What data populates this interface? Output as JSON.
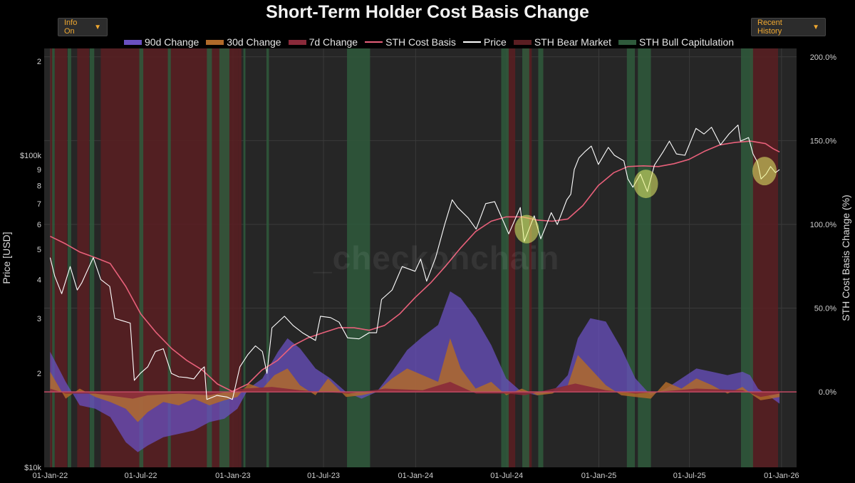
{
  "title": "Short-Term Holder Cost Basis Change",
  "controls": {
    "info_label": "Info On",
    "range_label": "Recent History"
  },
  "watermark": "_checkonchain",
  "colors": {
    "c90": "#6a50c0",
    "c30": "#b06a2a",
    "c7": "#8a2a3a",
    "cost_basis": "#e8607a",
    "price": "#ffffff",
    "bear": "#5a1e22",
    "bull": "#2f5a3c",
    "highlight": "#e8f06a",
    "plot_bg": "#262626",
    "grid": "#3a3a3a"
  },
  "legend": [
    {
      "label": "90d Change",
      "color": "#6a50c0",
      "kind": "area"
    },
    {
      "label": "30d Change",
      "color": "#b06a2a",
      "kind": "area"
    },
    {
      "label": "7d Change",
      "color": "#8a2a3a",
      "kind": "area"
    },
    {
      "label": "STH Cost Basis",
      "color": "#e8607a",
      "kind": "line"
    },
    {
      "label": "Price",
      "color": "#ffffff",
      "kind": "line"
    },
    {
      "label": "STH Bear Market",
      "color": "#5a1e22",
      "kind": "area"
    },
    {
      "label": "STH Bull Capitulation",
      "color": "#2f5a3c",
      "kind": "area"
    }
  ],
  "chart_data": {
    "type": "line",
    "title": "Short-Term Holder Cost Basis Change",
    "left_axis": {
      "label": "Price [USD]",
      "scale": "log",
      "range": [
        10000,
        220000
      ],
      "ticks": [
        {
          "v": 10000,
          "t": "$10k"
        },
        {
          "v": 20000,
          "t": "2"
        },
        {
          "v": 30000,
          "t": "3"
        },
        {
          "v": 40000,
          "t": "4"
        },
        {
          "v": 50000,
          "t": "5"
        },
        {
          "v": 60000,
          "t": "6"
        },
        {
          "v": 70000,
          "t": "7"
        },
        {
          "v": 80000,
          "t": "8"
        },
        {
          "v": 90000,
          "t": "9"
        },
        {
          "v": 100000,
          "t": "$100k"
        },
        {
          "v": 200000,
          "t": "2"
        }
      ]
    },
    "right_axis": {
      "label": "STH Cost Basis Change (%)",
      "range": [
        -45,
        205
      ],
      "ticks": [
        {
          "v": 0,
          "t": "0.0%"
        },
        {
          "v": 50,
          "t": "50.0%"
        },
        {
          "v": 100,
          "t": "100.0%"
        },
        {
          "v": 150,
          "t": "150.0%"
        },
        {
          "v": 200,
          "t": "200.0%"
        }
      ]
    },
    "x_axis": {
      "range": [
        "2021-12-20",
        "2026-01-31"
      ],
      "ticks": [
        {
          "d": "2022-01-01",
          "t": "01-Jan-22"
        },
        {
          "d": "2022-07-01",
          "t": "01-Jul-22"
        },
        {
          "d": "2023-01-01",
          "t": "01-Jan-23"
        },
        {
          "d": "2023-07-01",
          "t": "01-Jul-23"
        },
        {
          "d": "2024-01-01",
          "t": "01-Jan-24"
        },
        {
          "d": "2024-07-01",
          "t": "01-Jul-24"
        },
        {
          "d": "2025-01-01",
          "t": "01-Jan-25"
        },
        {
          "d": "2025-07-01",
          "t": "01-Jul-25"
        },
        {
          "d": "2026-01-01",
          "t": "01-Jan-26"
        }
      ]
    },
    "grid": true,
    "price": [
      [
        "2022-01-01",
        47000
      ],
      [
        "2022-01-10",
        41000
      ],
      [
        "2022-01-24",
        36000
      ],
      [
        "2022-02-10",
        44000
      ],
      [
        "2022-02-24",
        37000
      ],
      [
        "2022-03-05",
        39000
      ],
      [
        "2022-03-28",
        47000
      ],
      [
        "2022-04-12",
        40000
      ],
      [
        "2022-04-30",
        38000
      ],
      [
        "2022-05-10",
        30000
      ],
      [
        "2022-05-25",
        29500
      ],
      [
        "2022-06-10",
        29000
      ],
      [
        "2022-06-18",
        19000
      ],
      [
        "2022-06-30",
        20000
      ],
      [
        "2022-07-15",
        21000
      ],
      [
        "2022-07-30",
        23500
      ],
      [
        "2022-08-15",
        24000
      ],
      [
        "2022-08-31",
        20000
      ],
      [
        "2022-09-15",
        19500
      ],
      [
        "2022-09-30",
        19400
      ],
      [
        "2022-10-15",
        19200
      ],
      [
        "2022-10-30",
        20600
      ],
      [
        "2022-11-05",
        21000
      ],
      [
        "2022-11-10",
        16500
      ],
      [
        "2022-11-30",
        17000
      ],
      [
        "2022-12-20",
        16800
      ],
      [
        "2022-12-31",
        16500
      ],
      [
        "2023-01-15",
        21000
      ],
      [
        "2023-01-31",
        23000
      ],
      [
        "2023-02-15",
        24500
      ],
      [
        "2023-03-01",
        23500
      ],
      [
        "2023-03-10",
        20000
      ],
      [
        "2023-03-20",
        28000
      ],
      [
        "2023-04-14",
        30500
      ],
      [
        "2023-05-01",
        28500
      ],
      [
        "2023-05-20",
        27000
      ],
      [
        "2023-06-15",
        25500
      ],
      [
        "2023-06-25",
        30500
      ],
      [
        "2023-07-15",
        30200
      ],
      [
        "2023-08-01",
        29200
      ],
      [
        "2023-08-18",
        26000
      ],
      [
        "2023-09-10",
        25800
      ],
      [
        "2023-09-30",
        27000
      ],
      [
        "2023-10-15",
        27000
      ],
      [
        "2023-10-25",
        34500
      ],
      [
        "2023-11-15",
        37000
      ],
      [
        "2023-12-05",
        44000
      ],
      [
        "2023-12-31",
        42500
      ],
      [
        "2024-01-11",
        46500
      ],
      [
        "2024-01-23",
        39500
      ],
      [
        "2024-02-10",
        47000
      ],
      [
        "2024-02-28",
        60000
      ],
      [
        "2024-03-14",
        72000
      ],
      [
        "2024-03-25",
        68000
      ],
      [
        "2024-04-15",
        63000
      ],
      [
        "2024-05-01",
        58000
      ],
      [
        "2024-05-20",
        70000
      ],
      [
        "2024-06-07",
        71000
      ],
      [
        "2024-06-25",
        61000
      ],
      [
        "2024-07-05",
        56000
      ],
      [
        "2024-07-28",
        68000
      ],
      [
        "2024-08-05",
        53000
      ],
      [
        "2024-08-25",
        64000
      ],
      [
        "2024-09-07",
        54000
      ],
      [
        "2024-09-28",
        65500
      ],
      [
        "2024-10-10",
        60000
      ],
      [
        "2024-10-29",
        72000
      ],
      [
        "2024-11-06",
        75000
      ],
      [
        "2024-11-13",
        90000
      ],
      [
        "2024-11-22",
        98000
      ],
      [
        "2024-12-05",
        103000
      ],
      [
        "2024-12-17",
        107000
      ],
      [
        "2024-12-31",
        93500
      ],
      [
        "2025-01-20",
        106000
      ],
      [
        "2025-02-01",
        100000
      ],
      [
        "2025-02-20",
        96000
      ],
      [
        "2025-02-28",
        84000
      ],
      [
        "2025-03-10",
        79000
      ],
      [
        "2025-03-25",
        87000
      ],
      [
        "2025-04-08",
        76500
      ],
      [
        "2025-04-22",
        93000
      ],
      [
        "2025-05-10",
        103000
      ],
      [
        "2025-05-22",
        111000
      ],
      [
        "2025-06-05",
        101000
      ],
      [
        "2025-06-22",
        100000
      ],
      [
        "2025-07-14",
        122000
      ],
      [
        "2025-07-30",
        117000
      ],
      [
        "2025-08-14",
        123000
      ],
      [
        "2025-09-01",
        108000
      ],
      [
        "2025-09-18",
        117000
      ],
      [
        "2025-10-06",
        125000
      ],
      [
        "2025-10-11",
        111000
      ],
      [
        "2025-10-27",
        114000
      ],
      [
        "2025-11-05",
        101000
      ],
      [
        "2025-11-14",
        95000
      ],
      [
        "2025-11-21",
        84000
      ],
      [
        "2025-12-01",
        87000
      ],
      [
        "2025-12-10",
        92000
      ],
      [
        "2025-12-20",
        88000
      ],
      [
        "2025-12-28",
        90000
      ]
    ],
    "cost_basis": [
      [
        "2022-01-01",
        55000
      ],
      [
        "2022-02-01",
        52000
      ],
      [
        "2022-03-01",
        49000
      ],
      [
        "2022-04-01",
        47000
      ],
      [
        "2022-05-01",
        45000
      ],
      [
        "2022-06-01",
        38000
      ],
      [
        "2022-07-01",
        31000
      ],
      [
        "2022-08-01",
        27000
      ],
      [
        "2022-09-01",
        24000
      ],
      [
        "2022-10-01",
        22000
      ],
      [
        "2022-11-01",
        20500
      ],
      [
        "2022-12-01",
        18500
      ],
      [
        "2022-12-31",
        17500
      ],
      [
        "2023-01-31",
        18500
      ],
      [
        "2023-02-28",
        20500
      ],
      [
        "2023-03-31",
        22000
      ],
      [
        "2023-04-30",
        24500
      ],
      [
        "2023-05-31",
        26000
      ],
      [
        "2023-06-30",
        27000
      ],
      [
        "2023-07-31",
        28000
      ],
      [
        "2023-08-31",
        28000
      ],
      [
        "2023-09-30",
        27500
      ],
      [
        "2023-10-31",
        28500
      ],
      [
        "2023-11-30",
        31000
      ],
      [
        "2023-12-31",
        35000
      ],
      [
        "2024-01-31",
        39000
      ],
      [
        "2024-02-29",
        44000
      ],
      [
        "2024-03-31",
        50500
      ],
      [
        "2024-04-30",
        57000
      ],
      [
        "2024-05-31",
        61500
      ],
      [
        "2024-06-30",
        63500
      ],
      [
        "2024-07-31",
        63500
      ],
      [
        "2024-08-31",
        62000
      ],
      [
        "2024-09-30",
        61500
      ],
      [
        "2024-10-31",
        62500
      ],
      [
        "2024-11-30",
        69000
      ],
      [
        "2024-12-31",
        80000
      ],
      [
        "2025-01-31",
        88000
      ],
      [
        "2025-02-28",
        92000
      ],
      [
        "2025-03-31",
        92500
      ],
      [
        "2025-04-30",
        92000
      ],
      [
        "2025-05-31",
        94000
      ],
      [
        "2025-06-30",
        97000
      ],
      [
        "2025-07-31",
        103000
      ],
      [
        "2025-08-31",
        108000
      ],
      [
        "2025-09-30",
        110000
      ],
      [
        "2025-10-31",
        111000
      ],
      [
        "2025-11-30",
        109000
      ],
      [
        "2025-12-15",
        105000
      ],
      [
        "2025-12-28",
        102500
      ]
    ],
    "change_90d": [
      [
        "2022-01-01",
        24
      ],
      [
        "2022-02-01",
        6
      ],
      [
        "2022-03-01",
        -8
      ],
      [
        "2022-04-01",
        -10
      ],
      [
        "2022-05-01",
        -15
      ],
      [
        "2022-06-01",
        -30
      ],
      [
        "2022-06-25",
        -36
      ],
      [
        "2022-07-15",
        -32
      ],
      [
        "2022-08-15",
        -27
      ],
      [
        "2022-09-15",
        -25
      ],
      [
        "2022-10-15",
        -23
      ],
      [
        "2022-11-15",
        -18
      ],
      [
        "2022-12-15",
        -16
      ],
      [
        "2023-01-10",
        -10
      ],
      [
        "2023-02-01",
        2
      ],
      [
        "2023-03-01",
        8
      ],
      [
        "2023-04-01",
        24
      ],
      [
        "2023-04-20",
        32
      ],
      [
        "2023-05-15",
        26
      ],
      [
        "2023-06-15",
        14
      ],
      [
        "2023-07-15",
        8
      ],
      [
        "2023-08-15",
        0
      ],
      [
        "2023-09-15",
        -4
      ],
      [
        "2023-10-15",
        0
      ],
      [
        "2023-11-15",
        12
      ],
      [
        "2023-12-15",
        25
      ],
      [
        "2024-01-15",
        33
      ],
      [
        "2024-02-15",
        40
      ],
      [
        "2024-03-10",
        60
      ],
      [
        "2024-03-31",
        56
      ],
      [
        "2024-04-30",
        44
      ],
      [
        "2024-05-31",
        28
      ],
      [
        "2024-06-30",
        8
      ],
      [
        "2024-07-31",
        0
      ],
      [
        "2024-08-31",
        -2
      ],
      [
        "2024-09-30",
        0
      ],
      [
        "2024-10-31",
        10
      ],
      [
        "2024-11-20",
        32
      ],
      [
        "2024-12-15",
        44
      ],
      [
        "2025-01-15",
        42
      ],
      [
        "2025-02-15",
        26
      ],
      [
        "2025-03-15",
        8
      ],
      [
        "2025-04-15",
        -2
      ],
      [
        "2025-05-15",
        2
      ],
      [
        "2025-06-15",
        8
      ],
      [
        "2025-07-15",
        14
      ],
      [
        "2025-08-15",
        12
      ],
      [
        "2025-09-15",
        10
      ],
      [
        "2025-10-15",
        12
      ],
      [
        "2025-10-30",
        10
      ],
      [
        "2025-11-15",
        2
      ],
      [
        "2025-12-05",
        -2
      ],
      [
        "2025-12-28",
        -7
      ]
    ],
    "change_30d": [
      [
        "2022-01-01",
        12
      ],
      [
        "2022-02-01",
        -4
      ],
      [
        "2022-03-01",
        2
      ],
      [
        "2022-04-01",
        -3
      ],
      [
        "2022-05-01",
        -6
      ],
      [
        "2022-06-01",
        -10
      ],
      [
        "2022-06-25",
        -18
      ],
      [
        "2022-07-15",
        -12
      ],
      [
        "2022-08-15",
        -6
      ],
      [
        "2022-09-15",
        -8
      ],
      [
        "2022-10-15",
        -4
      ],
      [
        "2022-11-15",
        -8
      ],
      [
        "2022-12-15",
        -5
      ],
      [
        "2023-01-10",
        -3
      ],
      [
        "2023-02-01",
        5
      ],
      [
        "2023-03-01",
        2
      ],
      [
        "2023-03-25",
        10
      ],
      [
        "2023-04-20",
        14
      ],
      [
        "2023-05-15",
        4
      ],
      [
        "2023-06-15",
        -2
      ],
      [
        "2023-07-10",
        8
      ],
      [
        "2023-08-15",
        -3
      ],
      [
        "2023-09-15",
        -2
      ],
      [
        "2023-10-15",
        0
      ],
      [
        "2023-11-15",
        8
      ],
      [
        "2023-12-15",
        14
      ],
      [
        "2024-01-15",
        10
      ],
      [
        "2024-02-15",
        6
      ],
      [
        "2024-03-10",
        32
      ],
      [
        "2024-03-31",
        14
      ],
      [
        "2024-04-30",
        2
      ],
      [
        "2024-05-31",
        6
      ],
      [
        "2024-06-30",
        -2
      ],
      [
        "2024-07-31",
        2
      ],
      [
        "2024-08-31",
        -2
      ],
      [
        "2024-09-30",
        -1
      ],
      [
        "2024-10-31",
        4
      ],
      [
        "2024-11-20",
        22
      ],
      [
        "2024-12-15",
        14
      ],
      [
        "2025-01-15",
        4
      ],
      [
        "2025-02-15",
        -2
      ],
      [
        "2025-03-15",
        -3
      ],
      [
        "2025-04-15",
        -4
      ],
      [
        "2025-05-15",
        6
      ],
      [
        "2025-06-15",
        2
      ],
      [
        "2025-07-15",
        8
      ],
      [
        "2025-08-15",
        4
      ],
      [
        "2025-09-15",
        -1
      ],
      [
        "2025-10-15",
        3
      ],
      [
        "2025-11-05",
        -2
      ],
      [
        "2025-11-20",
        -5
      ],
      [
        "2025-12-10",
        -4
      ],
      [
        "2025-12-28",
        -3
      ]
    ],
    "change_7d": [
      [
        "2022-01-01",
        2
      ],
      [
        "2022-02-01",
        -1
      ],
      [
        "2022-04-01",
        -1
      ],
      [
        "2022-06-15",
        -4
      ],
      [
        "2022-07-15",
        -2
      ],
      [
        "2022-09-15",
        -1
      ],
      [
        "2022-11-15",
        -2
      ],
      [
        "2023-01-20",
        2
      ],
      [
        "2023-03-20",
        3
      ],
      [
        "2023-05-15",
        1
      ],
      [
        "2023-08-20",
        -1
      ],
      [
        "2023-11-01",
        2
      ],
      [
        "2024-01-15",
        1
      ],
      [
        "2024-03-10",
        6
      ],
      [
        "2024-05-01",
        -1
      ],
      [
        "2024-07-05",
        -1
      ],
      [
        "2024-08-05",
        -2
      ],
      [
        "2024-11-15",
        5
      ],
      [
        "2025-01-15",
        1
      ],
      [
        "2025-03-15",
        -1
      ],
      [
        "2025-07-15",
        2
      ],
      [
        "2025-10-15",
        1
      ],
      [
        "2025-11-20",
        -3
      ],
      [
        "2025-12-28",
        -1
      ]
    ],
    "bear_market": [
      [
        "2022-01-01",
        "2022-01-06"
      ],
      [
        "2022-01-10",
        "2022-02-04"
      ],
      [
        "2022-02-24",
        "2022-03-20"
      ],
      [
        "2022-04-12",
        "2023-01-12"
      ],
      [
        "2023-01-12",
        "2023-01-18"
      ],
      [
        "2024-07-02",
        "2024-07-18"
      ],
      [
        "2024-08-03",
        "2024-08-20"
      ],
      [
        "2025-10-30",
        "2025-12-25"
      ]
    ],
    "bull_capitulation": [
      [
        "2022-01-05",
        "2022-01-10"
      ],
      [
        "2022-02-05",
        "2022-02-12"
      ],
      [
        "2022-03-21",
        "2022-03-30"
      ],
      [
        "2022-06-28",
        "2022-07-06"
      ],
      [
        "2022-08-24",
        "2022-08-30"
      ],
      [
        "2022-11-10",
        "2022-11-20"
      ],
      [
        "2022-12-05",
        "2022-12-25"
      ],
      [
        "2023-01-22",
        "2023-01-26"
      ],
      [
        "2023-03-09",
        "2023-03-14"
      ],
      [
        "2023-08-17",
        "2023-10-02"
      ],
      [
        "2024-06-20",
        "2024-07-05"
      ],
      [
        "2024-08-01",
        "2024-08-15"
      ],
      [
        "2024-09-02",
        "2024-09-12"
      ],
      [
        "2025-02-26",
        "2025-03-14"
      ],
      [
        "2025-03-20",
        "2025-04-15"
      ],
      [
        "2025-10-12",
        "2025-11-05"
      ]
    ],
    "highlights": [
      {
        "d": "2024-08-10",
        "v": 58000
      },
      {
        "d": "2025-04-05",
        "v": 81000
      },
      {
        "d": "2025-11-28",
        "v": 89000
      }
    ]
  }
}
